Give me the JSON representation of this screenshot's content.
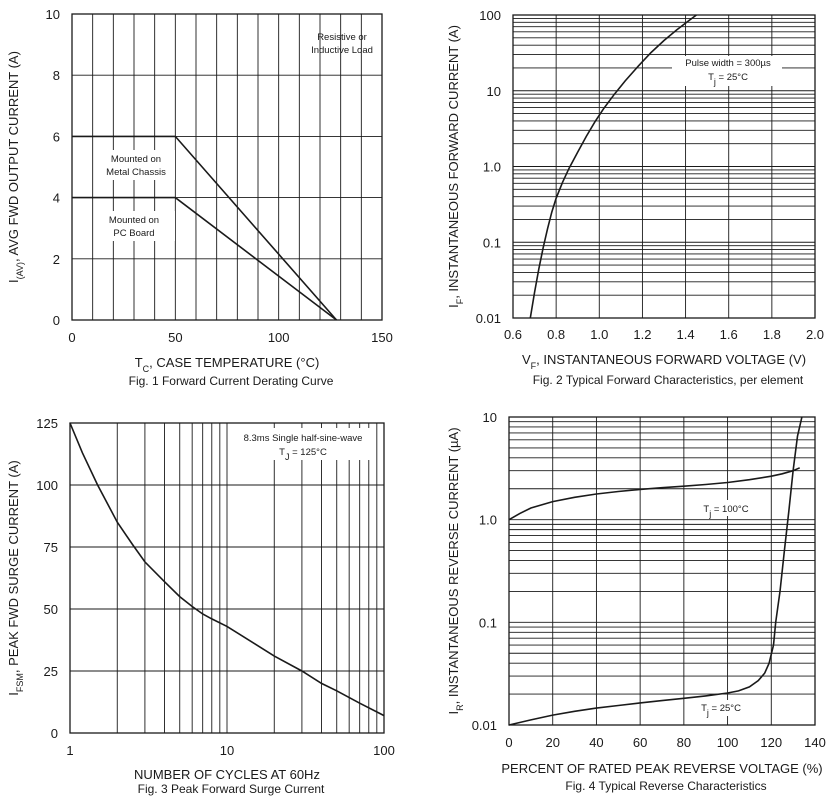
{
  "chart_data": [
    {
      "type": "line",
      "title": "Fig. 1  Forward Current Derating Curve",
      "xlabel": {
        "main": "T",
        "sub": "C",
        "rest": ", CASE TEMPERATURE (°C)"
      },
      "ylabel": {
        "main": "I",
        "sub": "(AV)",
        "rest": ", AVG FWD OUTPUT CURRENT (A)"
      },
      "xscale": "linear",
      "yscale": "linear",
      "xlim": [
        0,
        150
      ],
      "ylim": [
        0,
        10
      ],
      "xticks": [
        0,
        50,
        100,
        150
      ],
      "xtick_labels": [
        "0",
        "50",
        "100",
        "150"
      ],
      "yticks": [
        0,
        2,
        4,
        6,
        8,
        10
      ],
      "ytick_labels": [
        "0",
        "2",
        "4",
        "6",
        "8",
        "10"
      ],
      "xgrid": [
        0,
        10,
        20,
        30,
        40,
        50,
        60,
        70,
        80,
        90,
        100,
        110,
        120,
        130,
        140,
        150
      ],
      "ygrid": [
        0,
        2,
        4,
        6,
        8,
        10
      ],
      "series": [
        {
          "name": "Mounted on Metal Chassis",
          "x": [
            0,
            50,
            128
          ],
          "y": [
            6,
            6,
            0
          ]
        },
        {
          "name": "Mounted on PC Board",
          "x": [
            0,
            50,
            128
          ],
          "y": [
            4,
            4,
            0
          ]
        }
      ],
      "annotations": [
        {
          "id": "load",
          "lines": [
            "Resistive or",
            "Inductive Load"
          ]
        },
        {
          "id": "chassis",
          "lines": [
            "Mounted on",
            "Metal Chassis"
          ]
        },
        {
          "id": "pcb",
          "lines": [
            "Mounted on",
            "PC Board"
          ]
        }
      ]
    },
    {
      "type": "line",
      "title": "Fig. 2  Typical Forward Characteristics, per element",
      "xlabel": {
        "main": "V",
        "sub": "F",
        "rest": ", INSTANTANEOUS FORWARD VOLTAGE (V)"
      },
      "ylabel": {
        "main": "I",
        "sub": "F",
        "rest": ", INSTANTANEOUS FORWARD CURRENT (A)"
      },
      "xscale": "linear",
      "yscale": "log",
      "xlim": [
        0.6,
        2.0
      ],
      "ylim": [
        0.01,
        100
      ],
      "xticks": [
        0.6,
        0.8,
        1.0,
        1.2,
        1.4,
        1.6,
        1.8,
        2.0
      ],
      "xtick_labels": [
        "0.6",
        "0.8",
        "1.0",
        "1.2",
        "1.4",
        "1.6",
        "1.8",
        "2.0"
      ],
      "yticks": [
        0.01,
        0.1,
        1,
        10,
        100
      ],
      "ytick_labels": [
        "0.01",
        "0.1",
        "1.0",
        "10",
        "100"
      ],
      "xgrid": [
        0.6,
        0.8,
        1.0,
        1.2,
        1.4,
        1.6,
        1.8,
        2.0
      ],
      "ygrid": "log-minor",
      "series": [
        {
          "name": "Tj = 25°C",
          "x": [
            0.68,
            0.7,
            0.72,
            0.74,
            0.76,
            0.78,
            0.8,
            0.83,
            0.86,
            0.9,
            0.94,
            0.98,
            1.02,
            1.07,
            1.12,
            1.18,
            1.24,
            1.3,
            1.36,
            1.41,
            1.45
          ],
          "y": [
            0.01,
            0.022,
            0.045,
            0.085,
            0.15,
            0.25,
            0.38,
            0.62,
            0.95,
            1.55,
            2.5,
            3.9,
            5.8,
            9.0,
            13.5,
            21,
            32,
            46,
            64,
            82,
            100
          ]
        }
      ],
      "annotations": [
        {
          "id": "pulse",
          "lines": [
            "Pulse width = 300µs"
          ]
        },
        {
          "id": "tj",
          "main": "T",
          "sub": "j",
          "rest": " = 25°C"
        }
      ]
    },
    {
      "type": "line",
      "title": "Fig. 3  Peak Forward Surge Current",
      "xlabel": {
        "main": "NUMBER OF CYCLES AT 60Hz",
        "sub": "",
        "rest": ""
      },
      "ylabel": {
        "main": "I",
        "sub": "FSM",
        "rest": ", PEAK FWD SURGE CURRENT (A)"
      },
      "xscale": "log",
      "yscale": "linear",
      "xlim": [
        1,
        100
      ],
      "ylim": [
        0,
        125
      ],
      "xticks": [
        1,
        10,
        100
      ],
      "xtick_labels": [
        "1",
        "10",
        "100"
      ],
      "yticks": [
        0,
        25,
        50,
        75,
        100,
        125
      ],
      "ytick_labels": [
        "0",
        "25",
        "50",
        "75",
        "100",
        "125"
      ],
      "xgrid": "log-minor",
      "ygrid": [
        0,
        25,
        50,
        75,
        100,
        125
      ],
      "series": [
        {
          "name": "8.3ms Single half-sine-wave",
          "x": [
            1,
            1.2,
            1.5,
            2,
            2.5,
            3,
            4,
            5,
            6,
            7,
            8,
            10,
            15,
            20,
            30,
            40,
            50,
            70,
            100
          ],
          "y": [
            125,
            113,
            100,
            85,
            76,
            69,
            61,
            55,
            51,
            48,
            46,
            43,
            36,
            31,
            25,
            20,
            17,
            12,
            7
          ]
        }
      ],
      "annotations": [
        {
          "id": "wave",
          "lines": [
            "8.3ms Single half-sine-wave"
          ]
        },
        {
          "id": "tj",
          "main": "T",
          "sub": "J",
          "rest": " = 125°C"
        }
      ]
    },
    {
      "type": "line",
      "title": "Fig. 4  Typical Reverse Characteristics",
      "xlabel": {
        "main": "PERCENT OF RATED PEAK REVERSE VOLTAGE (%)",
        "sub": "",
        "rest": ""
      },
      "ylabel": {
        "main": "I",
        "sub": "R",
        "rest": ", INSTANTANEOUS REVERSE CURRENT (µA)"
      },
      "xscale": "linear",
      "yscale": "log",
      "xlim": [
        0,
        140
      ],
      "ylim": [
        0.01,
        10
      ],
      "xticks": [
        0,
        20,
        40,
        60,
        80,
        100,
        120,
        140
      ],
      "xtick_labels": [
        "0",
        "20",
        "40",
        "60",
        "80",
        "100",
        "120",
        "140"
      ],
      "yticks": [
        0.01,
        0.1,
        1,
        10
      ],
      "ytick_labels": [
        "0.01",
        "0.1",
        "1.0",
        "10"
      ],
      "xgrid": [
        0,
        20,
        40,
        60,
        80,
        100,
        120,
        140
      ],
      "ygrid": "log-minor",
      "series": [
        {
          "name": "Tj = 100°C",
          "x": [
            0,
            5,
            10,
            20,
            30,
            40,
            50,
            60,
            70,
            80,
            90,
            100,
            110,
            120,
            125,
            130,
            133
          ],
          "y": [
            1.0,
            1.15,
            1.3,
            1.5,
            1.65,
            1.78,
            1.88,
            1.97,
            2.05,
            2.12,
            2.2,
            2.3,
            2.45,
            2.65,
            2.8,
            3.0,
            3.2
          ]
        },
        {
          "name": "Tj = 25°C",
          "x": [
            0,
            10,
            20,
            30,
            40,
            50,
            60,
            70,
            80,
            90,
            100,
            105,
            110,
            114,
            117,
            119,
            121,
            122,
            124,
            126,
            128,
            130,
            132,
            134
          ],
          "y": [
            0.0095,
            0.0112,
            0.0125,
            0.0136,
            0.0146,
            0.0155,
            0.0164,
            0.0173,
            0.0182,
            0.0192,
            0.0205,
            0.0215,
            0.0235,
            0.027,
            0.032,
            0.04,
            0.06,
            0.1,
            0.2,
            0.5,
            1.2,
            3.0,
            6.5,
            10
          ]
        }
      ],
      "annotations": [
        {
          "id": "tj100",
          "main": "T",
          "sub": "j",
          "rest": " = 100°C"
        },
        {
          "id": "tj25",
          "main": "T",
          "sub": "j",
          "rest": " = 25°C"
        }
      ]
    }
  ]
}
